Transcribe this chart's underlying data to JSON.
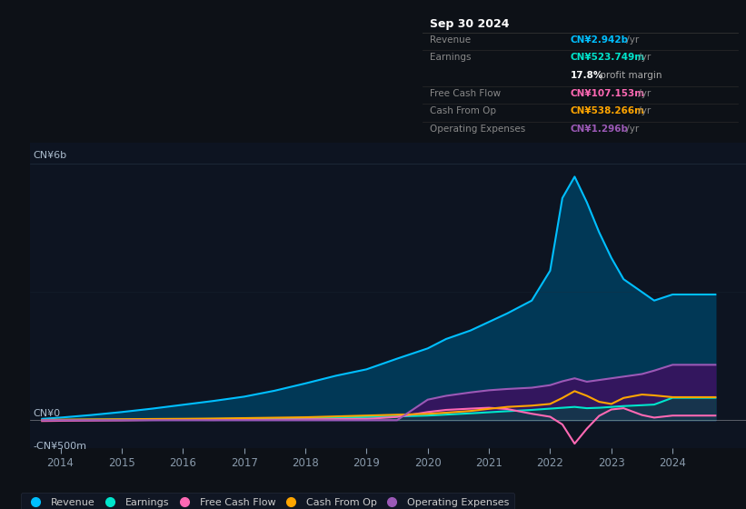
{
  "bg_color": "#0d1117",
  "plot_bg_color": "#0d1421",
  "title_box_bg": "#0a0c10",
  "title_box_border": "#2a2a2a",
  "title": "Sep 30 2024",
  "revenue_label": "CN¥2.942b /yr",
  "earnings_label": "CN¥523.749m /yr",
  "profit_margin_label": "17.8% profit margin",
  "fcf_label": "CN¥107.153m /yr",
  "cfo_label": "CN¥538.266m /yr",
  "opex_label": "CN¥1.296b /yr",
  "y_label_top": "CN¥6b",
  "y_label_zero": "CN¥0",
  "y_label_bottom": "-CN¥500m",
  "x_ticks": [
    2014,
    2015,
    2016,
    2017,
    2018,
    2019,
    2020,
    2021,
    2022,
    2023,
    2024
  ],
  "xlim": [
    2013.5,
    2025.2
  ],
  "ylim": [
    -650,
    6500
  ],
  "revenue_color": "#00bfff",
  "earnings_color": "#00e5cc",
  "fcf_color": "#ff69b4",
  "cfo_color": "#ffa500",
  "opex_color": "#9b59b6",
  "revenue_fill": "#003d5c",
  "opex_fill": "#3d1060",
  "earnings_fill": "#004d40",
  "years": [
    2013.7,
    2014.0,
    2014.5,
    2015.0,
    2015.5,
    2016.0,
    2016.5,
    2017.0,
    2017.5,
    2018.0,
    2018.5,
    2019.0,
    2019.5,
    2020.0,
    2020.3,
    2020.7,
    2021.0,
    2021.3,
    2021.7,
    2022.0,
    2022.2,
    2022.4,
    2022.6,
    2022.8,
    2023.0,
    2023.2,
    2023.5,
    2023.7,
    2024.0,
    2024.3,
    2024.7
  ],
  "revenue": [
    30,
    60,
    120,
    190,
    270,
    360,
    450,
    550,
    690,
    860,
    1040,
    1190,
    1440,
    1680,
    1900,
    2100,
    2300,
    2500,
    2800,
    3500,
    5200,
    5700,
    5100,
    4400,
    3800,
    3300,
    3000,
    2800,
    2942,
    2942,
    2942
  ],
  "earnings": [
    0,
    5,
    10,
    15,
    18,
    22,
    28,
    32,
    42,
    52,
    62,
    72,
    88,
    108,
    130,
    160,
    185,
    210,
    240,
    270,
    290,
    310,
    280,
    290,
    310,
    330,
    350,
    365,
    524,
    524,
    524
  ],
  "fcf": [
    -20,
    -15,
    -10,
    -5,
    5,
    8,
    5,
    10,
    15,
    20,
    25,
    30,
    75,
    190,
    240,
    270,
    290,
    260,
    150,
    80,
    -100,
    -550,
    -200,
    100,
    250,
    280,
    120,
    60,
    107,
    107,
    107
  ],
  "cfo": [
    5,
    12,
    18,
    22,
    28,
    32,
    38,
    48,
    58,
    68,
    88,
    108,
    128,
    148,
    175,
    215,
    265,
    310,
    340,
    380,
    520,
    680,
    570,
    430,
    380,
    520,
    600,
    580,
    538,
    538,
    538
  ],
  "opex": [
    0,
    0,
    0,
    0,
    0,
    0,
    0,
    0,
    0,
    0,
    0,
    0,
    0,
    480,
    570,
    650,
    700,
    730,
    760,
    820,
    910,
    980,
    900,
    940,
    980,
    1020,
    1080,
    1160,
    1296,
    1296,
    1296
  ],
  "legend_items": [
    {
      "label": "Revenue",
      "color": "#00bfff"
    },
    {
      "label": "Earnings",
      "color": "#00e5cc"
    },
    {
      "label": "Free Cash Flow",
      "color": "#ff69b4"
    },
    {
      "label": "Cash From Op",
      "color": "#ffa500"
    },
    {
      "label": "Operating Expenses",
      "color": "#9b59b6"
    }
  ]
}
